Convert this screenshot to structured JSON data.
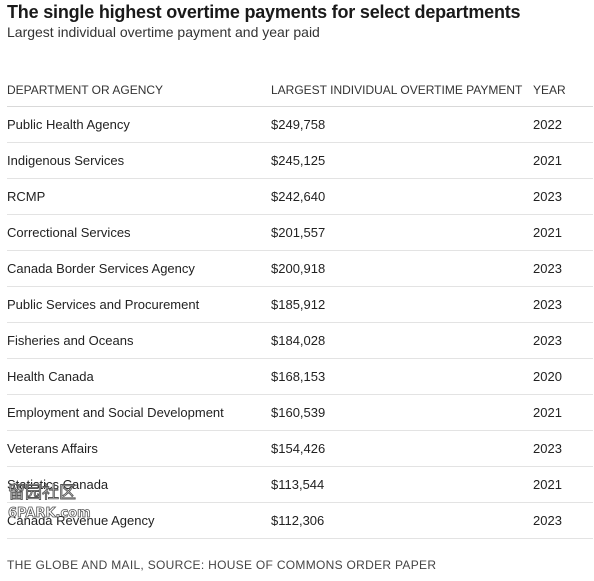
{
  "header": {
    "title": "The single highest overtime payments for select departments",
    "subtitle": "Largest individual overtime payment and year paid"
  },
  "table": {
    "columns": [
      "DEPARTMENT OR AGENCY",
      "LARGEST INDIVIDUAL OVERTIME PAYMENT",
      "YEAR"
    ]
  },
  "chart_data": {
    "type": "table",
    "title": "The single highest overtime payments for select departments",
    "subtitle": "Largest individual overtime payment and year paid",
    "columns": [
      "DEPARTMENT OR AGENCY",
      "LARGEST INDIVIDUAL OVERTIME PAYMENT",
      "YEAR"
    ],
    "rows": [
      {
        "department": "Public Health Agency",
        "payment": "$249,758",
        "year": "2022"
      },
      {
        "department": "Indigenous Services",
        "payment": "$245,125",
        "year": "2021"
      },
      {
        "department": "RCMP",
        "payment": "$242,640",
        "year": "2023"
      },
      {
        "department": "Correctional Services",
        "payment": "$201,557",
        "year": "2021"
      },
      {
        "department": "Canada Border Services Agency",
        "payment": "$200,918",
        "year": "2023"
      },
      {
        "department": "Public Services and Procurement",
        "payment": "$185,912",
        "year": "2023"
      },
      {
        "department": "Fisheries and Oceans",
        "payment": "$184,028",
        "year": "2023"
      },
      {
        "department": "Health Canada",
        "payment": "$168,153",
        "year": "2020"
      },
      {
        "department": "Employment and Social Development",
        "payment": "$160,539",
        "year": "2021"
      },
      {
        "department": "Veterans Affairs",
        "payment": "$154,426",
        "year": "2023"
      },
      {
        "department": "Statistics Canada",
        "payment": "$113,544",
        "year": "2021"
      },
      {
        "department": "Canada Revenue Agency",
        "payment": "$112,306",
        "year": "2023"
      }
    ]
  },
  "footer": {
    "source": "THE GLOBE AND MAIL, SOURCE: HOUSE OF COMMONS ORDER PAPER"
  },
  "watermark": {
    "text_top": "留园社区",
    "text_bottom": "6PARK.com"
  }
}
